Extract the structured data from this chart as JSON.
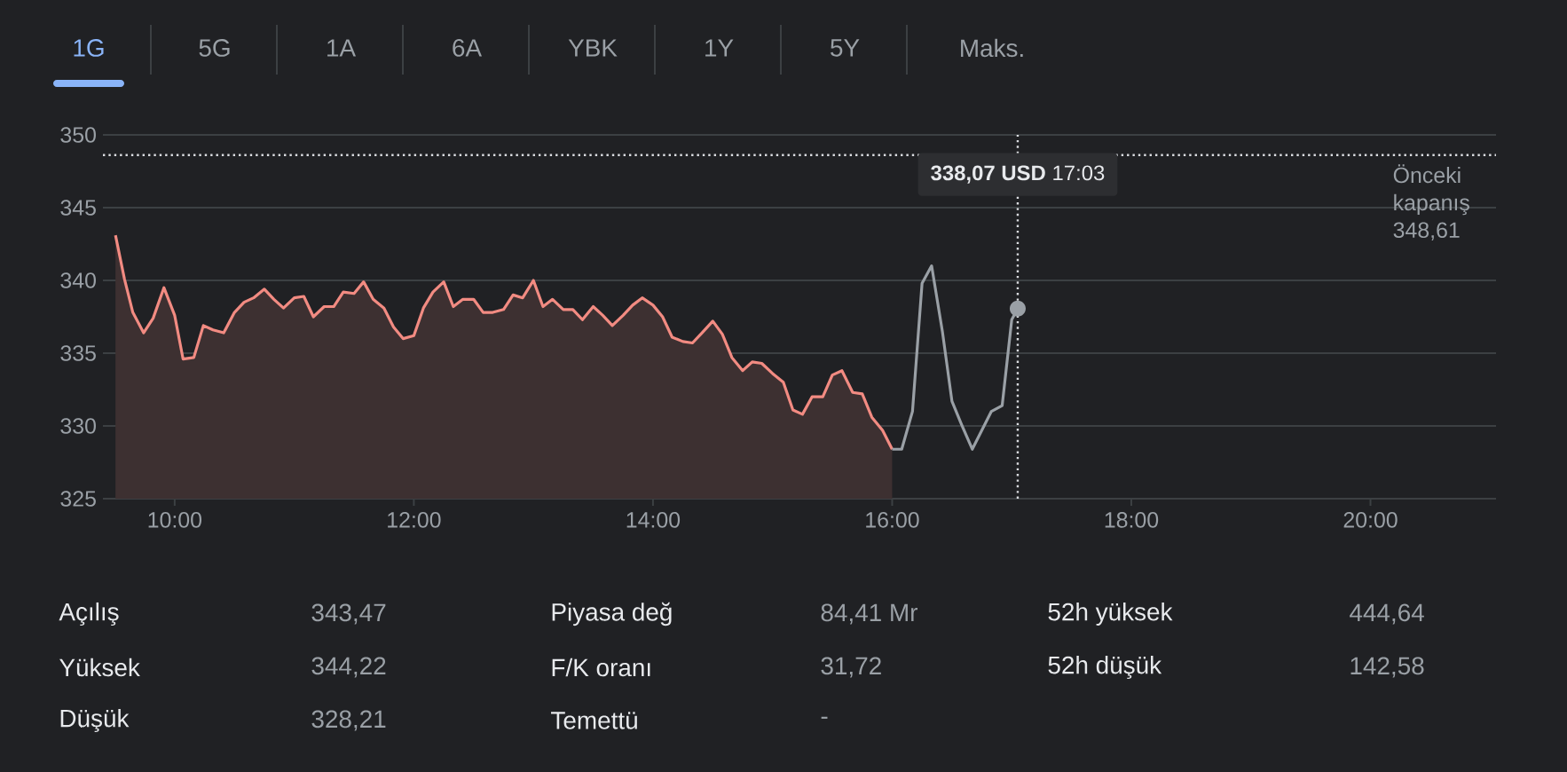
{
  "chart_data": {
    "type": "line",
    "xlim": [
      9.4,
      21.05
    ],
    "ylim": [
      325,
      350
    ],
    "xticks": [
      {
        "value": 10,
        "label": "10:00"
      },
      {
        "value": 12,
        "label": "12:00"
      },
      {
        "value": 14,
        "label": "14:00"
      },
      {
        "value": 16,
        "label": "16:00"
      },
      {
        "value": 18,
        "label": "18:00"
      },
      {
        "value": 20,
        "label": "20:00"
      }
    ],
    "yticks": [
      325,
      330,
      335,
      340,
      345,
      350
    ],
    "grid": "y",
    "marker": "none",
    "line_style": "solid",
    "series": [
      {
        "type": "area",
        "color": "#f28b82",
        "x": [
          9.505,
          9.58,
          9.65,
          9.74,
          9.82,
          9.91,
          10.0,
          10.07,
          10.16,
          10.24,
          10.32,
          10.41,
          10.5,
          10.58,
          10.66,
          10.75,
          10.83,
          10.91,
          11.0,
          11.08,
          11.16,
          11.25,
          11.33,
          11.41,
          11.5,
          11.58,
          11.66,
          11.75,
          11.83,
          11.91,
          12.0,
          12.08,
          12.16,
          12.25,
          12.33,
          12.41,
          12.5,
          12.58,
          12.66,
          12.75,
          12.83,
          12.91,
          13.0,
          13.08,
          13.16,
          13.25,
          13.33,
          13.41,
          13.5,
          13.58,
          13.66,
          13.75,
          13.83,
          13.91,
          14.0,
          14.08,
          14.16,
          14.25,
          14.33,
          14.41,
          14.5,
          14.58,
          14.66,
          14.75,
          14.83,
          14.91,
          15.0,
          15.09,
          15.17,
          15.25,
          15.33,
          15.42,
          15.5,
          15.58,
          15.67,
          15.75,
          15.83,
          15.92,
          16.0
        ],
        "values": [
          343.1,
          340.1,
          337.8,
          336.4,
          337.4,
          339.5,
          337.6,
          334.6,
          334.7,
          336.9,
          336.6,
          336.4,
          337.8,
          338.5,
          338.8,
          339.4,
          338.7,
          338.1,
          338.8,
          338.9,
          337.5,
          338.2,
          338.2,
          339.2,
          339.1,
          339.9,
          338.7,
          338.1,
          336.8,
          336.0,
          336.2,
          338.1,
          339.2,
          339.9,
          338.2,
          338.7,
          338.7,
          337.8,
          337.8,
          338.0,
          339.0,
          338.8,
          340.0,
          338.2,
          338.7,
          338.0,
          338.0,
          337.3,
          338.2,
          337.6,
          336.9,
          337.6,
          338.3,
          338.8,
          338.3,
          337.5,
          336.1,
          335.8,
          335.7,
          336.4,
          337.2,
          336.3,
          334.7,
          333.8,
          334.4,
          334.3,
          333.6,
          333.0,
          331.1,
          330.8,
          332.0,
          332.0,
          333.5,
          333.8,
          332.3,
          332.2,
          330.6,
          329.7,
          328.4
        ]
      },
      {
        "type": "line",
        "color": "#9aa0a6",
        "x": [
          16.0,
          16.08,
          16.17,
          16.25,
          16.33,
          16.42,
          16.5,
          16.58,
          16.67,
          16.75,
          16.83,
          16.92,
          17.0,
          17.05
        ],
        "values": [
          328.4,
          328.4,
          331.0,
          339.8,
          341.0,
          336.5,
          331.7,
          330.1,
          328.4,
          329.7,
          331.0,
          331.4,
          337.3,
          338.07
        ]
      }
    ],
    "ref_lines": [
      {
        "axis": "y",
        "value": 348.61,
        "label": "Önceki kapanış 348,61",
        "line_style": "dotted",
        "color": "#dadce0"
      },
      {
        "axis": "x",
        "value": 17.05,
        "line_style": "dotted",
        "color": "#dadce0"
      }
    ],
    "annotations": [
      "1G",
      "5G",
      "1A",
      "6A",
      "YBK",
      "1Y",
      "5Y",
      "Maks.",
      "Açılış",
      "343,47",
      "Yüksek",
      "344,22",
      "Düşük",
      "328,21",
      "Piyasa değ",
      "84,41 Mr",
      "F/K oranı",
      "31,72",
      "Temettü",
      "-",
      "52h yüksek",
      "444,64",
      "52h düşük",
      "142,58",
      "**338,07 USD** 17:03"
    ]
  }
}
